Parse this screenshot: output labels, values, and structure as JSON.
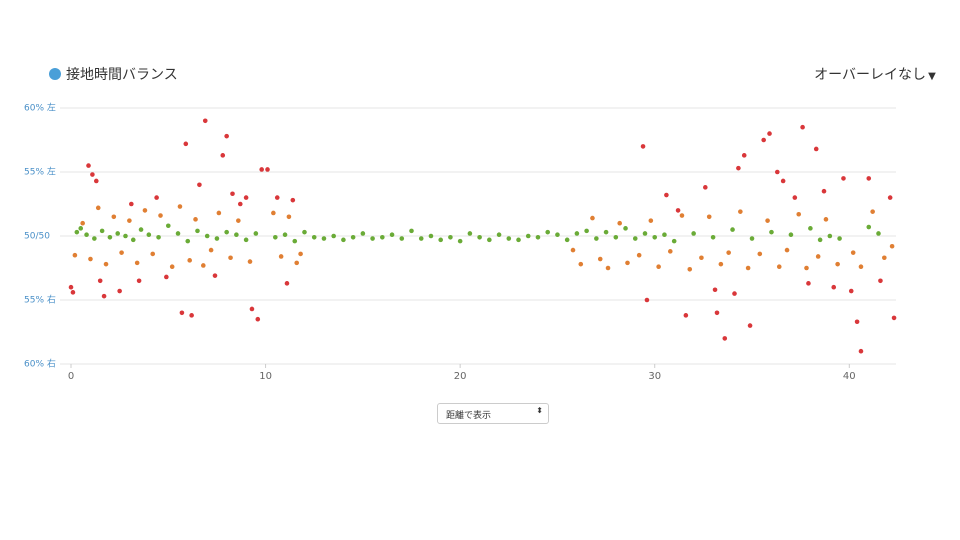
{
  "chart_data": {
    "type": "scatter",
    "title": "接地時間バランス",
    "title_marker_color": "#4a9fd8",
    "xlim": [
      0,
      42.4
    ],
    "xticks": [
      0,
      10,
      20,
      30,
      40
    ],
    "ylim": [
      40,
      60
    ],
    "yticks": [
      {
        "value": 60,
        "label": "60% 左"
      },
      {
        "value": 55,
        "label": "55% 左"
      },
      {
        "value": 50,
        "label": "50/50"
      },
      {
        "value": 45,
        "label": "55% 右"
      },
      {
        "value": 40,
        "label": "60% 右"
      }
    ],
    "grid": true,
    "series": [
      {
        "color": "#6aab37",
        "x": [
          0.3,
          0.5,
          0.8,
          1.2,
          1.6,
          2.0,
          2.4,
          2.8,
          3.2,
          3.6,
          4.0,
          4.5,
          5.0,
          5.5,
          6.0,
          6.5,
          7.0,
          7.5,
          8.0,
          8.5,
          9.0,
          9.5,
          10.5,
          11.0,
          11.5,
          12.0,
          12.5,
          13.0,
          13.5,
          14.0,
          14.5,
          15.0,
          15.5,
          16.0,
          16.5,
          17.0,
          17.5,
          18.0,
          18.5,
          19.0,
          19.5,
          20.0,
          20.5,
          21.0,
          21.5,
          22.0,
          22.5,
          23.0,
          23.5,
          24.0,
          24.5,
          25.0,
          25.5,
          26.0,
          26.5,
          27.0,
          27.5,
          28.0,
          28.5,
          29.0,
          29.5,
          30.0,
          30.5,
          31.0,
          32.0,
          33.0,
          34.0,
          35.0,
          36.0,
          37.0,
          38.0,
          38.5,
          39.0,
          39.5,
          41.0,
          41.5
        ],
        "values": [
          50.3,
          50.6,
          50.1,
          49.8,
          50.4,
          49.9,
          50.2,
          50.0,
          49.7,
          50.5,
          50.1,
          49.9,
          50.8,
          50.2,
          49.6,
          50.4,
          50.0,
          49.8,
          50.3,
          50.1,
          49.7,
          50.2,
          49.9,
          50.1,
          49.6,
          50.3,
          49.9,
          49.8,
          50.0,
          49.7,
          49.9,
          50.2,
          49.8,
          49.9,
          50.1,
          49.8,
          50.4,
          49.8,
          50.0,
          49.7,
          49.9,
          49.6,
          50.2,
          49.9,
          49.7,
          50.1,
          49.8,
          49.7,
          50.0,
          49.9,
          50.3,
          50.1,
          49.7,
          50.2,
          50.4,
          49.8,
          50.3,
          49.9,
          50.6,
          49.8,
          50.2,
          49.9,
          50.1,
          49.6,
          50.2,
          49.9,
          50.5,
          49.8,
          50.3,
          50.1,
          50.6,
          49.7,
          50.0,
          49.8,
          50.7,
          50.2
        ]
      },
      {
        "color": "#e07f33",
        "x": [
          0.2,
          0.6,
          1.0,
          1.4,
          1.8,
          2.2,
          2.6,
          3.0,
          3.4,
          3.8,
          4.2,
          4.6,
          5.2,
          5.6,
          6.1,
          6.4,
          6.8,
          7.2,
          7.6,
          8.2,
          8.6,
          9.2,
          10.4,
          10.8,
          11.2,
          11.6,
          11.8,
          25.8,
          26.2,
          26.8,
          27.2,
          27.6,
          28.2,
          28.6,
          29.2,
          29.8,
          30.2,
          30.8,
          31.4,
          31.8,
          32.4,
          32.8,
          33.4,
          33.8,
          34.4,
          34.8,
          35.4,
          35.8,
          36.4,
          36.8,
          37.4,
          37.8,
          38.4,
          38.8,
          39.4,
          40.2,
          40.6,
          41.2,
          41.8,
          42.2
        ],
        "values": [
          48.5,
          51.0,
          48.2,
          52.2,
          47.8,
          51.5,
          48.7,
          51.2,
          47.9,
          52.0,
          48.6,
          51.6,
          47.6,
          52.3,
          48.1,
          51.3,
          47.7,
          48.9,
          51.8,
          48.3,
          51.2,
          48.0,
          51.8,
          48.4,
          51.5,
          47.9,
          48.6,
          48.9,
          47.8,
          51.4,
          48.2,
          47.5,
          51.0,
          47.9,
          48.5,
          51.2,
          47.6,
          48.8,
          51.6,
          47.4,
          48.3,
          51.5,
          47.8,
          48.7,
          51.9,
          47.5,
          48.6,
          51.2,
          47.6,
          48.9,
          51.7,
          47.5,
          48.4,
          51.3,
          47.8,
          48.7,
          47.6,
          51.9,
          48.3,
          49.2
        ]
      },
      {
        "color": "#d9373a",
        "x": [
          0.0,
          0.1,
          0.9,
          1.1,
          1.3,
          1.5,
          1.7,
          2.5,
          3.1,
          3.5,
          4.4,
          4.9,
          5.7,
          5.9,
          6.2,
          6.6,
          6.9,
          7.4,
          7.8,
          8.0,
          8.3,
          8.7,
          9.0,
          9.3,
          9.6,
          9.8,
          10.1,
          10.6,
          11.1,
          11.4,
          29.4,
          29.6,
          30.6,
          31.2,
          31.6,
          32.6,
          33.1,
          33.2,
          33.6,
          34.1,
          34.3,
          34.6,
          34.9,
          35.6,
          35.9,
          36.3,
          36.6,
          37.2,
          37.6,
          37.9,
          38.3,
          38.7,
          39.2,
          39.7,
          40.1,
          40.4,
          40.6,
          41.0,
          41.6,
          42.1,
          42.3
        ],
        "values": [
          46.0,
          45.6,
          55.5,
          54.8,
          54.3,
          46.5,
          45.3,
          45.7,
          52.5,
          46.5,
          53.0,
          46.8,
          44.0,
          57.2,
          43.8,
          54.0,
          59.0,
          46.9,
          56.3,
          57.8,
          53.3,
          52.5,
          53.0,
          44.3,
          43.5,
          55.2,
          55.2,
          53.0,
          46.3,
          52.8,
          57.0,
          45.0,
          53.2,
          52.0,
          43.8,
          53.8,
          45.8,
          44.0,
          42.0,
          45.5,
          55.3,
          56.3,
          43.0,
          57.5,
          58.0,
          55.0,
          54.3,
          53.0,
          58.5,
          46.3,
          56.8,
          53.5,
          46.0,
          54.5,
          45.7,
          43.3,
          41.0,
          54.5,
          46.5,
          53.0,
          43.6
        ]
      }
    ]
  },
  "controls": {
    "overlay": "オーバーレイなし",
    "axis_mode": "距離で表示"
  }
}
